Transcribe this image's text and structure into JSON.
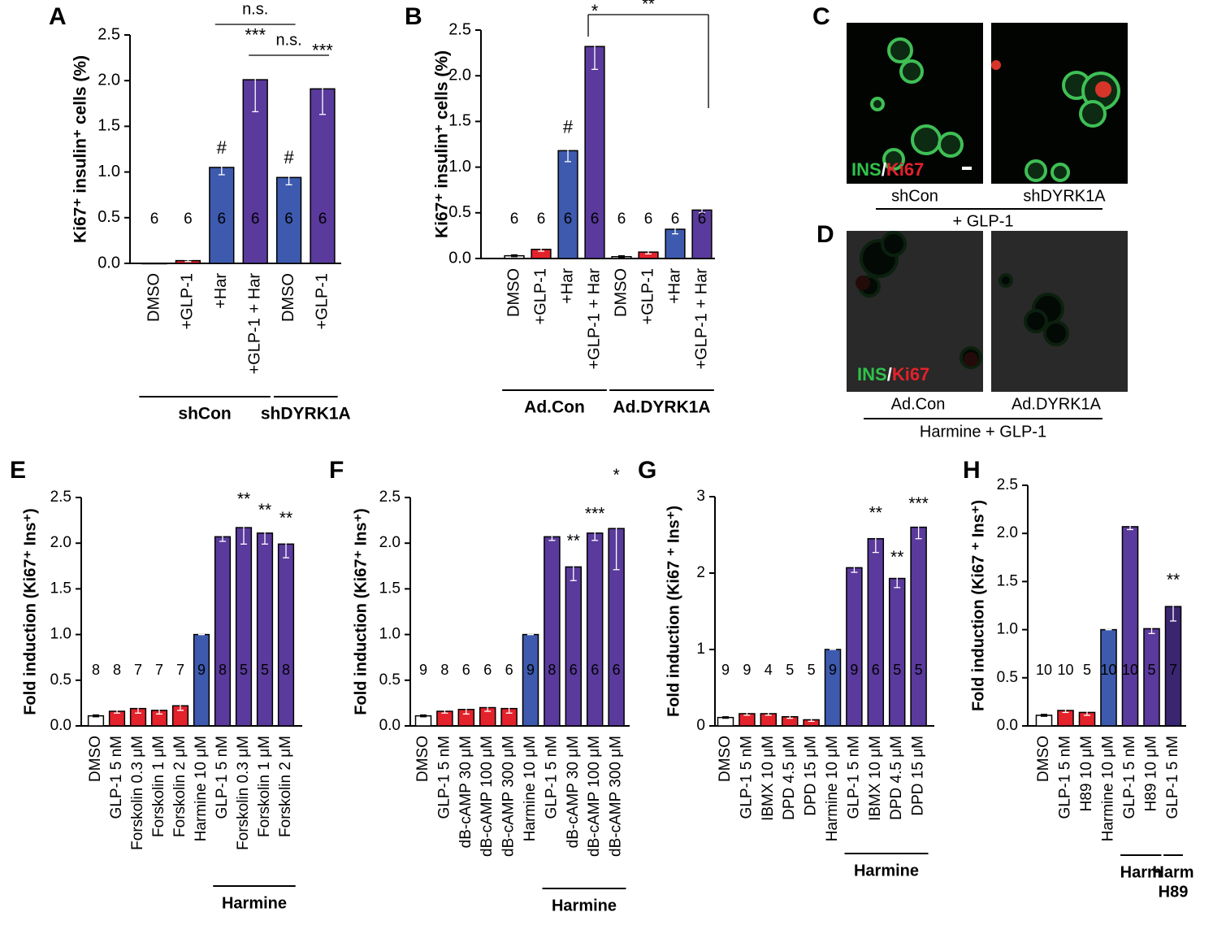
{
  "chart_data": [
    {
      "type": "bar",
      "panel": "A",
      "ylabel": "Ki67⁺ insulin⁺ cells (%)",
      "ylim": [
        0,
        2.5
      ],
      "yticks": [
        {
          "value": 0,
          "label": "0.0"
        },
        0.5,
        {
          "value": 1,
          "label": "1.0"
        },
        1.5,
        {
          "value": 2,
          "label": "2.0"
        },
        2.5
      ],
      "categories": [
        "DMSO",
        "+GLP-1",
        "+Har",
        "+GLP-1 + Har",
        "DMSO",
        "+GLP-1"
      ],
      "values": [
        0,
        0.03,
        1.05,
        2.01,
        0.94,
        1.91
      ],
      "errors": [
        0,
        0.01,
        0.08,
        0.35,
        0.08,
        0.28
      ],
      "colors": [
        "#ffffff",
        "#e3222b",
        "#3d5aae",
        "#5a3a9c",
        "#3d5aae",
        "#5a3a9c"
      ],
      "n": [
        6,
        6,
        6,
        6,
        6,
        6
      ],
      "significance": [
        null,
        null,
        "#",
        "***",
        "#",
        "***"
      ],
      "groups": [
        {
          "label": "shCon",
          "from": 0,
          "to": 3
        },
        {
          "label": "shDYRK1A",
          "from": 4,
          "to": 5
        }
      ],
      "brackets": [
        {
          "label": "n.s.",
          "from": 2,
          "to": 4
        },
        {
          "label": "n.s.",
          "from": 3,
          "to": 5
        }
      ]
    },
    {
      "type": "bar",
      "panel": "B",
      "ylabel": "Ki67⁺ insulin⁺ cells (%)",
      "ylim": [
        0,
        2.5
      ],
      "yticks": [
        {
          "value": 0,
          "label": "0.0"
        },
        0.5,
        {
          "value": 1,
          "label": "1.0"
        },
        1.5,
        {
          "value": 2,
          "label": "2.0"
        },
        2.5
      ],
      "categories": [
        "DMSO",
        "+GLP-1",
        "+Har",
        "+GLP-1 + Har",
        "DMSO",
        "+GLP-1",
        "+Har",
        "+GLP-1 + Har"
      ],
      "values": [
        0.03,
        0.1,
        1.18,
        2.32,
        0.02,
        0.07,
        0.32,
        0.53
      ],
      "errors": [
        0.01,
        0.02,
        0.12,
        0.25,
        0.01,
        0.02,
        0.05,
        0.03
      ],
      "colors": [
        "#ffffff",
        "#e3222b",
        "#3d5aae",
        "#5a3a9c",
        "#ffffff",
        "#e3222b",
        "#3d5aae",
        "#5a3a9c"
      ],
      "n": [
        6,
        6,
        6,
        6,
        6,
        6,
        6,
        6
      ],
      "significance": [
        null,
        null,
        "#",
        "*",
        null,
        null,
        null,
        null
      ],
      "groups": [
        {
          "label": "Ad.Con",
          "from": 0,
          "to": 3
        },
        {
          "label": "Ad.DYRK1A",
          "from": 4,
          "to": 7
        }
      ],
      "brackets": [
        {
          "label": "**",
          "from": 3,
          "to": 7
        }
      ]
    },
    {
      "type": "bar",
      "panel": "E",
      "ylabel": "Fold induction (Ki67⁺ Ins⁺)",
      "ylim": [
        0,
        2.5
      ],
      "yticks": [
        {
          "value": 0,
          "label": "0.0"
        },
        0.5,
        {
          "value": 1,
          "label": "1.0"
        },
        1.5,
        {
          "value": 2,
          "label": "2.0"
        },
        2.5
      ],
      "categories": [
        "DMSO",
        "GLP-1 5 nM",
        "Forskolin 0.3 μM",
        "Forskolin 1 μM",
        "Forskolin 2 μM",
        "Harmine 10 μM",
        "GLP-1 5 nM",
        "Forskolin 0.3 μM",
        "Forskolin 1 μM",
        "Forskolin 2 μM"
      ],
      "values": [
        0.11,
        0.16,
        0.19,
        0.17,
        0.22,
        1.0,
        2.07,
        2.17,
        2.11,
        1.99
      ],
      "errors": [
        0.01,
        0.02,
        0.05,
        0.04,
        0.05,
        0,
        0.05,
        0.18,
        0.12,
        0.15
      ],
      "colors": [
        "#ffffff",
        "#e3222b",
        "#e3222b",
        "#e3222b",
        "#e3222b",
        "#3d5aae",
        "#5a3a9c",
        "#5a3a9c",
        "#5a3a9c",
        "#5a3a9c"
      ],
      "n": [
        8,
        8,
        7,
        7,
        7,
        9,
        8,
        5,
        5,
        8
      ],
      "significance": [
        null,
        null,
        null,
        null,
        null,
        null,
        null,
        "**",
        "**",
        "**"
      ],
      "groups": [
        {
          "label": "Harmine",
          "from": 6,
          "to": 9
        }
      ]
    },
    {
      "type": "bar",
      "panel": "F",
      "ylabel": "Fold induction (Ki67⁺ Ins⁺)",
      "ylim": [
        0,
        2.5
      ],
      "yticks": [
        {
          "value": 0,
          "label": "0.0"
        },
        0.5,
        {
          "value": 1,
          "label": "1.0"
        },
        1.5,
        {
          "value": 2,
          "label": "2.0"
        },
        2.5
      ],
      "categories": [
        "DMSO",
        "GLP-1 5 nM",
        "dB-cAMP 30 μM",
        "dB-cAMP 100 μM",
        "dB-cAMP 300 μM",
        "Harmine 10 μM",
        "GLP-1 5 nM",
        "dB-cAMP 30 μM",
        "dB-cAMP 100 μM",
        "dB-cAMP 300 μM"
      ],
      "values": [
        0.11,
        0.16,
        0.18,
        0.2,
        0.19,
        1.0,
        2.07,
        1.74,
        2.11,
        2.16
      ],
      "errors": [
        0.01,
        0.02,
        0.05,
        0.04,
        0.05,
        0,
        0.04,
        0.15,
        0.08,
        0.45
      ],
      "colors": [
        "#ffffff",
        "#e3222b",
        "#e3222b",
        "#e3222b",
        "#e3222b",
        "#3d5aae",
        "#5a3a9c",
        "#5a3a9c",
        "#5a3a9c",
        "#5a3a9c"
      ],
      "n": [
        9,
        8,
        6,
        6,
        6,
        9,
        8,
        6,
        6,
        6
      ],
      "significance": [
        null,
        null,
        null,
        null,
        null,
        null,
        null,
        "**",
        "***",
        "*"
      ],
      "groups": [
        {
          "label": "Harmine",
          "from": 6,
          "to": 9
        }
      ]
    },
    {
      "type": "bar",
      "panel": "G",
      "ylabel": "Fold induction (Ki67 ⁺ Ins⁺)",
      "ylim": [
        0,
        3
      ],
      "yticks": [
        0,
        1,
        2,
        3
      ],
      "categories": [
        "DMSO",
        "GLP-1 5 nM",
        "IBMX 10 μM",
        "DPD 4.5 μM",
        "DPD 15 μM",
        "Harmine 10 μM",
        "GLP-1 5 nM",
        "IBMX 10 μM",
        "DPD 4.5 μM",
        "DPD 15 μM"
      ],
      "values": [
        0.11,
        0.16,
        0.16,
        0.12,
        0.08,
        1.0,
        2.07,
        2.45,
        1.93,
        2.6
      ],
      "errors": [
        0.01,
        0.02,
        0.02,
        0.02,
        0.02,
        0,
        0.06,
        0.18,
        0.12,
        0.15
      ],
      "colors": [
        "#ffffff",
        "#e3222b",
        "#e3222b",
        "#e3222b",
        "#e3222b",
        "#3d5aae",
        "#5a3a9c",
        "#5a3a9c",
        "#5a3a9c",
        "#5a3a9c"
      ],
      "n": [
        9,
        9,
        4,
        5,
        5,
        9,
        9,
        6,
        5,
        5
      ],
      "significance": [
        null,
        null,
        null,
        null,
        null,
        null,
        null,
        "**",
        "**",
        "***"
      ],
      "groups": [
        {
          "label": "Harmine",
          "from": 6,
          "to": 9
        }
      ]
    },
    {
      "type": "bar",
      "panel": "H",
      "ylabel": "Fold induction (Ki67 ⁺ Ins⁺)",
      "ylim": [
        0,
        2.5
      ],
      "yticks": [
        {
          "value": 0,
          "label": "0.0"
        },
        0.5,
        {
          "value": 1,
          "label": "1.0"
        },
        1.5,
        {
          "value": 2,
          "label": "2.0"
        },
        2.5
      ],
      "categories": [
        "DMSO",
        "GLP-1 5 nM",
        "H89 10 μM",
        "Harmine 10 μM",
        "GLP-1 5 nM",
        "H89 10 μM",
        "GLP-1 5 nM"
      ],
      "values": [
        0.11,
        0.16,
        0.14,
        1.0,
        2.07,
        1.01,
        1.24
      ],
      "errors": [
        0.01,
        0.02,
        0.03,
        0,
        0.03,
        0.05,
        0.15
      ],
      "colors": [
        "#ffffff",
        "#e3222b",
        "#e3222b",
        "#3d5aae",
        "#5a3a9c",
        "#5a3a9c",
        "#3a2670"
      ],
      "n": [
        10,
        10,
        5,
        10,
        10,
        5,
        7
      ],
      "significance": [
        null,
        null,
        null,
        null,
        null,
        null,
        "**"
      ],
      "groups": [
        {
          "label": "Harm",
          "from": 4,
          "to": 5
        },
        {
          "label": "Harm",
          "sublabel": "H89",
          "from": 6,
          "to": 6
        }
      ]
    }
  ],
  "micrographs": [
    {
      "panel": "C",
      "images": [
        "shCon",
        "shDYRK1A"
      ],
      "condition": "+ GLP-1"
    },
    {
      "panel": "D",
      "images": [
        "Ad.Con",
        "Ad.DYRK1A"
      ],
      "condition": "Harmine + GLP-1"
    }
  ],
  "stain": {
    "ins": "INS",
    "separator": "/",
    "ki67": "Ki67"
  }
}
